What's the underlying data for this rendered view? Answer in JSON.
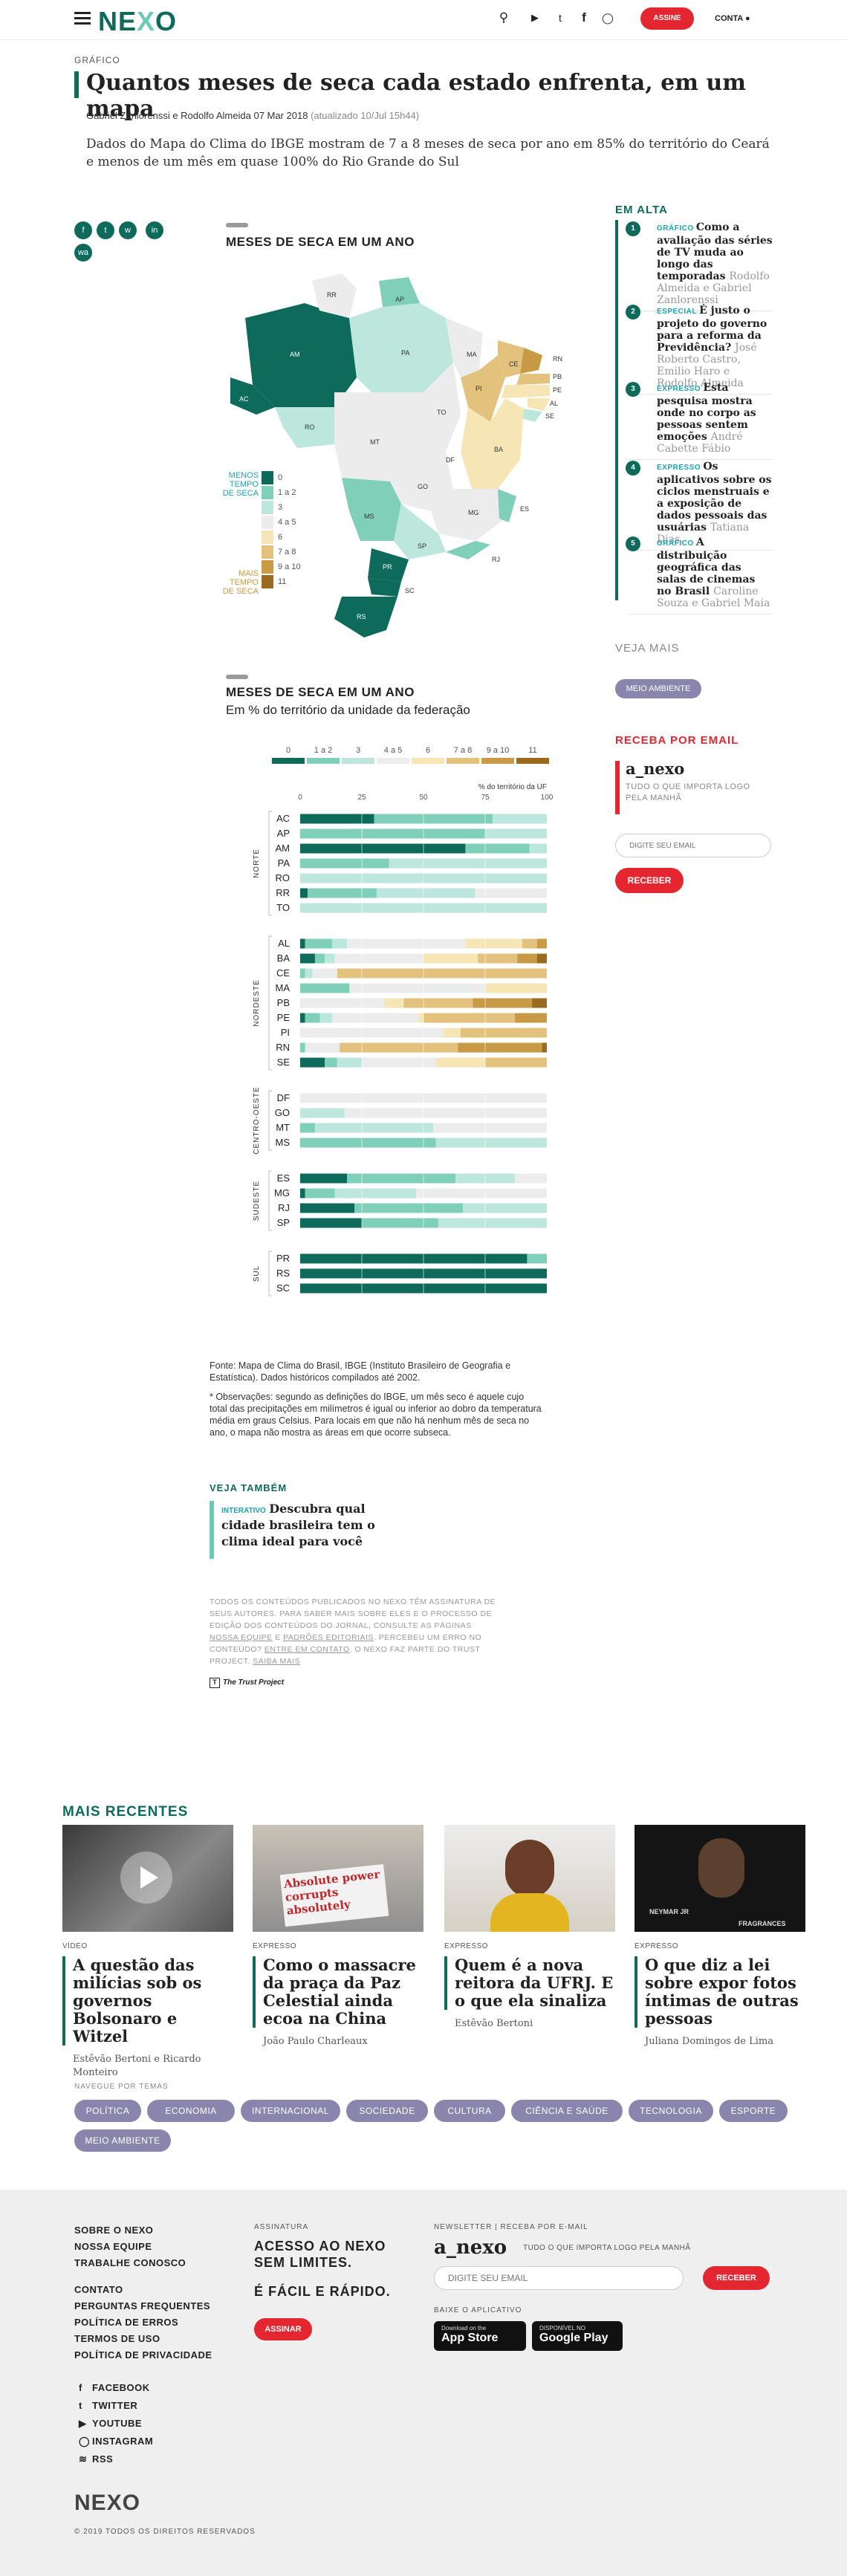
{
  "header": {
    "logo": "NEXO",
    "assine": "ASSINE",
    "conta": "CONTA",
    "icons": [
      "search-icon",
      "youtube-icon",
      "twitter-icon",
      "facebook-icon",
      "instagram-icon",
      "user-icon"
    ]
  },
  "article": {
    "section": "GRÁFICO",
    "title": "Quantos meses de seca cada estado enfrenta, em um mapa",
    "authors": "Gabriel Zanlorenssi e Rodolfo Almeida",
    "date": "07 Mar 2018",
    "updated": "(atualizado 10/Jul 15h44)",
    "lead": "Dados do Mapa do Clima do IBGE mostram de 7 a 8 meses de seca por ano em 85% do território do Ceará e menos de um mês em quase 100% do Rio Grande do Sul",
    "share": [
      "f",
      "t",
      "w",
      "in",
      "wa"
    ]
  },
  "map_chart": {
    "title": "MESES DE SECA EM UM ANO",
    "legend_top": "MENOS TEMPO DE SECA",
    "legend_bottom": "MAIS TEMPO DE SECA",
    "legend_labels": [
      "0",
      "1 a 2",
      "3",
      "4 a 5",
      "6",
      "7 a 8",
      "9 a 10",
      "11"
    ],
    "colors": [
      "#0e6b5c",
      "#7fcfb9",
      "#bde6dc",
      "#ececec",
      "#f6e6b6",
      "#e3c27d",
      "#c89a45",
      "#9a6a1e"
    ],
    "state_labels": [
      "RR",
      "AP",
      "AM",
      "PA",
      "MA",
      "CE",
      "RN",
      "PB",
      "PE",
      "AL",
      "SE",
      "AC",
      "RO",
      "TO",
      "PI",
      "BA",
      "MT",
      "DF",
      "GO",
      "MG",
      "ES",
      "MS",
      "SP",
      "RJ",
      "PR",
      "SC",
      "RS"
    ]
  },
  "bar_chart": {
    "title": "MESES DE SECA EM UM ANO",
    "subtitle": "Em % do território da unidade da federação",
    "legend_labels": [
      "0",
      "1 a 2",
      "3",
      "4 a 5",
      "6",
      "7 a 8",
      "9 a 10",
      "11"
    ],
    "axis_label": "% do território da UF",
    "ticks": [
      "0",
      "25",
      "50",
      "75",
      "100"
    ],
    "colors": [
      "#0e6b5c",
      "#7fcfb9",
      "#bde6dc",
      "#ececec",
      "#f6e6b6",
      "#e3c27d",
      "#c89a45",
      "#9a6a1e"
    ]
  },
  "chart_data": {
    "type": "bar",
    "title": "MESES DE SECA EM UM ANO",
    "subtitle": "Em % do território da unidade da federação",
    "xlabel": "% do território da UF",
    "xlim": [
      0,
      100
    ],
    "stacked": true,
    "legend": [
      "0",
      "1 a 2",
      "3",
      "4 a 5",
      "6",
      "7 a 8",
      "9 a 10",
      "11"
    ],
    "regions": [
      {
        "name": "NORTE",
        "states": [
          {
            "uf": "AC",
            "values": [
              30,
              48,
              22,
              0,
              0,
              0,
              0,
              0
            ]
          },
          {
            "uf": "AP",
            "values": [
              0,
              75,
              25,
              0,
              0,
              0,
              0,
              0
            ]
          },
          {
            "uf": "AM",
            "values": [
              67,
              26,
              7,
              0,
              0,
              0,
              0,
              0
            ]
          },
          {
            "uf": "PA",
            "values": [
              0,
              36,
              64,
              0,
              0,
              0,
              0,
              0
            ]
          },
          {
            "uf": "RO",
            "values": [
              0,
              0,
              100,
              0,
              0,
              0,
              0,
              0
            ]
          },
          {
            "uf": "RR",
            "values": [
              3,
              28,
              40,
              29,
              0,
              0,
              0,
              0
            ]
          },
          {
            "uf": "TO",
            "values": [
              0,
              0,
              100,
              0,
              0,
              0,
              0,
              0
            ]
          }
        ]
      },
      {
        "name": "NORDESTE",
        "states": [
          {
            "uf": "AL",
            "values": [
              2,
              11,
              6,
              48,
              23,
              6,
              4,
              0
            ]
          },
          {
            "uf": "BA",
            "values": [
              6,
              4,
              4,
              36,
              22,
              16,
              8,
              4
            ]
          },
          {
            "uf": "CE",
            "values": [
              0,
              2,
              3,
              10,
              0,
              85,
              0,
              0
            ]
          },
          {
            "uf": "MA",
            "values": [
              0,
              20,
              0,
              55,
              25,
              0,
              0,
              0
            ]
          },
          {
            "uf": "PB",
            "values": [
              0,
              0,
              0,
              34,
              8,
              28,
              24,
              6
            ]
          },
          {
            "uf": "PE",
            "values": [
              2,
              6,
              5,
              35,
              2,
              37,
              13,
              0
            ]
          },
          {
            "uf": "PI",
            "values": [
              0,
              0,
              0,
              58,
              7,
              35,
              0,
              0
            ]
          },
          {
            "uf": "RN",
            "values": [
              0,
              2,
              0,
              14,
              0,
              48,
              34,
              2
            ]
          },
          {
            "uf": "SE",
            "values": [
              10,
              5,
              10,
              30,
              20,
              25,
              0,
              0
            ]
          }
        ]
      },
      {
        "name": "CENTRO-OESTE",
        "states": [
          {
            "uf": "DF",
            "values": [
              0,
              0,
              0,
              100,
              0,
              0,
              0,
              0
            ]
          },
          {
            "uf": "GO",
            "values": [
              0,
              0,
              18,
              82,
              0,
              0,
              0,
              0
            ]
          },
          {
            "uf": "MT",
            "values": [
              0,
              6,
              48,
              46,
              0,
              0,
              0,
              0
            ]
          },
          {
            "uf": "MS",
            "values": [
              0,
              55,
              45,
              0,
              0,
              0,
              0,
              0
            ]
          }
        ]
      },
      {
        "name": "SUDESTE",
        "states": [
          {
            "uf": "ES",
            "values": [
              19,
              44,
              24,
              13,
              0,
              0,
              0,
              0
            ]
          },
          {
            "uf": "MG",
            "values": [
              2,
              12,
              33,
              53,
              0,
              0,
              0,
              0
            ]
          },
          {
            "uf": "RJ",
            "values": [
              22,
              44,
              34,
              0,
              0,
              0,
              0,
              0
            ]
          },
          {
            "uf": "SP",
            "values": [
              25,
              31,
              44,
              0,
              0,
              0,
              0,
              0
            ]
          }
        ]
      },
      {
        "name": "SUL",
        "states": [
          {
            "uf": "PR",
            "values": [
              92,
              8,
              0,
              0,
              0,
              0,
              0,
              0
            ]
          },
          {
            "uf": "RS",
            "values": [
              100,
              0,
              0,
              0,
              0,
              0,
              0,
              0
            ]
          },
          {
            "uf": "SC",
            "values": [
              100,
              0,
              0,
              0,
              0,
              0,
              0,
              0
            ]
          }
        ]
      }
    ]
  },
  "notes": {
    "source": "Fonte: Mapa de Clima do Brasil, IBGE (Instituto Brasileiro de Geografia e Estatística). Dados históricos compilados até 2002.",
    "observations": "* Observações: segundo as definições do IBGE, um mês seco é aquele cujo total das precipitações em milímetros é igual ou inferior ao dobro da temperatura média em graus Celsius. Para locais em que não há nenhum mês de seca no ano, o mapa não mostra as áreas em que ocorre subseca."
  },
  "veja_tambem": {
    "head": "VEJA TAMBÉM",
    "tag": "INTERATIVO",
    "title": "Descubra qual cidade brasileira tem o clima ideal para você"
  },
  "credits": {
    "p1": "TODOS OS CONTEÚDOS PUBLICADOS NO NEXO TÊM ASSINATURA DE SEUS AUTORES. PARA SABER MAIS SOBRE ELES E O PROCESSO DE EDIÇÃO DOS CONTEÚDOS DO JORNAL, CONSULTE AS PÁGINAS",
    "l1": "NOSSA EQUIPE",
    "and": "E",
    "l2": "PADRÕES EDITORIAIS",
    "p2": ". PERCEBEU UM ERRO NO CONTEÚDO?",
    "l3": "ENTRE EM CONTATO",
    "p3": ". O NEXO FAZ PARTE DO TRUST PROJECT.",
    "l4": "SAIBA MAIS",
    "trust": "The Trust Project"
  },
  "sidebar": {
    "em_alta_head": "EM ALTA",
    "em_alta": [
      {
        "n": "1",
        "cat": "GRÁFICO",
        "title": "Como a avaliação das séries de TV muda ao longo das temporadas",
        "author": "Rodolfo Almeida e Gabriel Zanlorenssi"
      },
      {
        "n": "2",
        "cat": "ESPECIAL",
        "title": "É justo o projeto do governo para a reforma da Previdência?",
        "author": "José Roberto Castro, Emilio Haro e Rodolfo Almeida"
      },
      {
        "n": "3",
        "cat": "EXPRESSO",
        "title": "Esta pesquisa mostra onde no corpo as pessoas sentem emoções",
        "author": "André Cabette Fábio"
      },
      {
        "n": "4",
        "cat": "EXPRESSO",
        "title": "Os aplicativos sobre os ciclos menstruais e a exposição de dados pessoais das usuárias",
        "author": "Tatiana Dias"
      },
      {
        "n": "5",
        "cat": "GRÁFICO",
        "title": "A distribuição geográfica das salas de cinemas no Brasil",
        "author": "Caroline Souza e Gabriel Maia"
      }
    ],
    "veja_mais_head": "VEJA MAIS",
    "veja_mais_tag": "MEIO AMBIENTE",
    "receba_head": "RECEBA POR EMAIL",
    "receba_logo": "a_nexo",
    "receba_desc": "TUDO O QUE IMPORTA LOGO PELA MANHÃ",
    "email_placeholder": "DIGITE SEU EMAIL",
    "receber": "RECEBER"
  },
  "recentes": {
    "head": "MAIS RECENTES",
    "items": [
      {
        "tag": "VÍDEO",
        "title": "A questão das milícias sob os governos Bolsonaro e Witzel",
        "author": "Estêvão Bertoni e Ricardo Monteiro"
      },
      {
        "tag": "EXPRESSO",
        "title": "Como o massacre da praça da Paz Celestial ainda ecoa na China",
        "author": "João Paulo Charleaux"
      },
      {
        "tag": "EXPRESSO",
        "title": "Quem é a nova reitora da UFRJ. E o que ela sinaliza",
        "author": "Estêvão Bertoni"
      },
      {
        "tag": "EXPRESSO",
        "title": "O que diz a lei sobre expor fotos íntimas de outras pessoas",
        "author": "Juliana Domingos de Lima"
      }
    ],
    "img_text": [
      "Absolute power",
      "corrupts",
      "absolutely"
    ],
    "img_text2": [
      "NEYMAR JR",
      "FRAGRANCES"
    ]
  },
  "temas": {
    "head": "NAVEGUE POR TEMAS",
    "items": [
      "POLÍTICA",
      "ECONOMIA",
      "INTERNACIONAL",
      "SOCIEDADE",
      "CULTURA",
      "CIÊNCIA E SAÚDE",
      "TECNOLOGIA",
      "ESPORTE",
      "MEIO AMBIENTE"
    ]
  },
  "footer": {
    "links1": [
      "SOBRE O NEXO",
      "NOSSA EQUIPE",
      "TRABALHE CONOSCO"
    ],
    "links2": [
      "CONTATO",
      "PERGUNTAS FREQUENTES",
      "POLÍTICA DE ERROS",
      "TERMOS DE USO",
      "POLÍTICA DE PRIVACIDADE"
    ],
    "social": [
      "FACEBOOK",
      "TWITTER",
      "YOUTUBE",
      "INSTAGRAM",
      "RSS"
    ],
    "assin_head": "ASSINATURA",
    "assin_t1": "ACESSO AO NEXO SEM LIMITES.",
    "assin_t2": "É FÁCIL E RÁPIDO.",
    "assin_btn": "ASSINAR",
    "news_head": "NEWSLETTER | RECEBA POR E-MAIL",
    "news_logo": "a_nexo",
    "news_desc": "TUDO O QUE IMPORTA LOGO PELA MANHÃ",
    "email_placeholder": "DIGITE SEU EMAIL",
    "receber": "RECEBER",
    "app_head": "BAIXE O APLICATIVO",
    "appstore_1": "Download on the",
    "appstore_2": "App Store",
    "gplay_1": "DISPONÍVEL NO",
    "gplay_2": "Google Play",
    "logo": "NEXO",
    "copy": "© 2019 TODOS OS DIREITOS RESERVADOS"
  }
}
